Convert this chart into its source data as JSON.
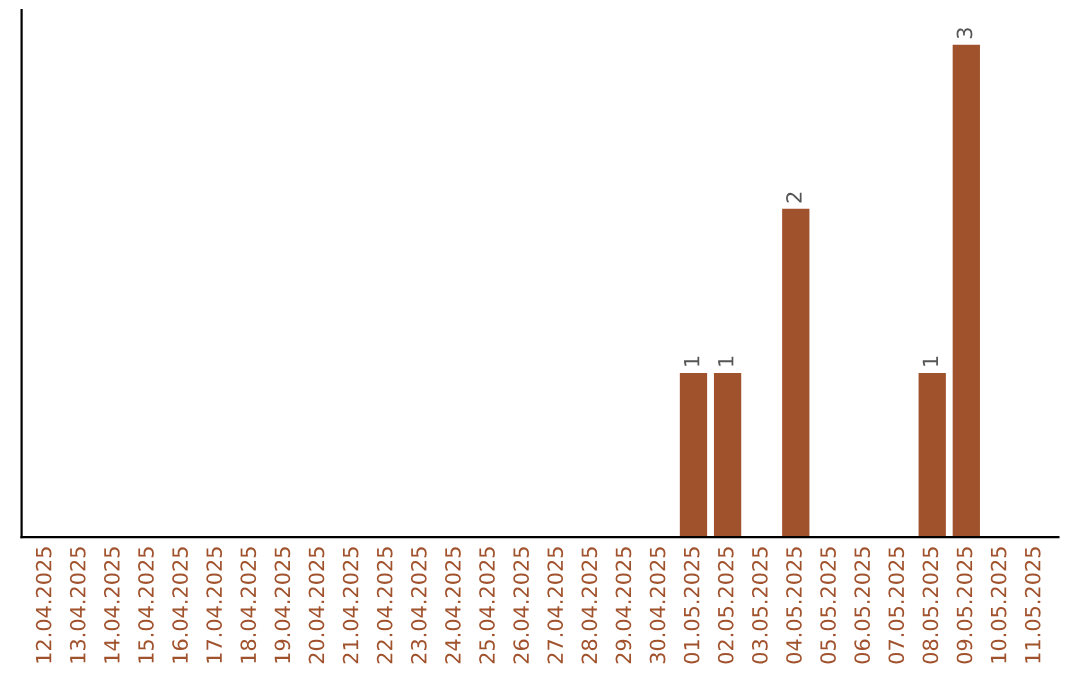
{
  "chart_data": {
    "type": "bar",
    "categories": [
      "12.04.2025",
      "13.04.2025",
      "14.04.2025",
      "15.04.2025",
      "16.04.2025",
      "17.04.2025",
      "18.04.2025",
      "19.04.2025",
      "20.04.2025",
      "21.04.2025",
      "22.04.2025",
      "23.04.2025",
      "24.04.2025",
      "25.04.2025",
      "26.04.2025",
      "27.04.2025",
      "28.04.2025",
      "29.04.2025",
      "30.04.2025",
      "01.05.2025",
      "02.05.2025",
      "03.05.2025",
      "04.05.2025",
      "05.05.2025",
      "06.05.2025",
      "07.05.2025",
      "08.05.2025",
      "09.05.2025",
      "10.05.2025",
      "11.05.2025"
    ],
    "values": [
      null,
      null,
      null,
      null,
      null,
      null,
      null,
      null,
      null,
      null,
      null,
      null,
      null,
      null,
      null,
      null,
      null,
      null,
      null,
      1,
      1,
      null,
      2,
      null,
      null,
      null,
      1,
      3,
      null,
      null
    ],
    "data_labels": true,
    "color": "#a0522d",
    "tick_labels": "x"
  }
}
